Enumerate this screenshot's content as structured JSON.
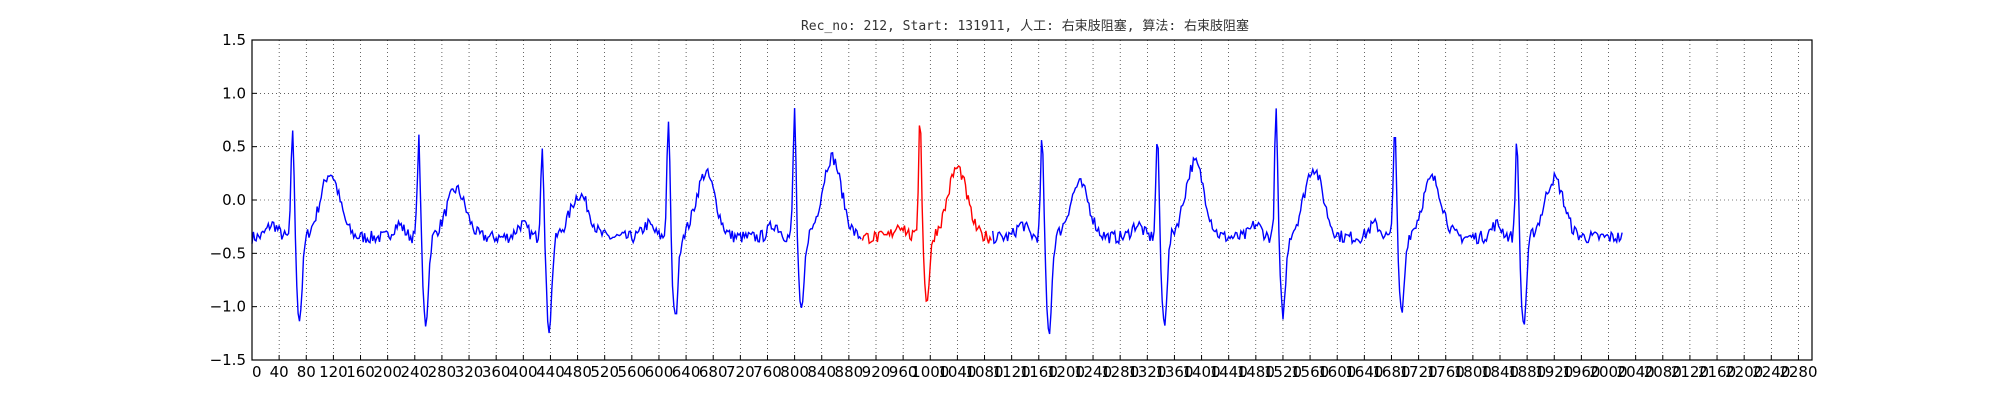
{
  "chart_data": {
    "type": "line",
    "title": "Rec_no: 212, Start: 131911, 人工: 右束肢阻塞, 算法: 右束肢阻塞",
    "xlabel": "",
    "ylabel": "",
    "xlim": [
      0,
      2300
    ],
    "ylim": [
      -1.5,
      1.5
    ],
    "grid": true,
    "x_ticks": [
      0,
      40,
      80,
      120,
      160,
      200,
      240,
      280,
      320,
      360,
      400,
      440,
      480,
      520,
      560,
      600,
      640,
      680,
      720,
      760,
      800,
      840,
      880,
      920,
      960,
      1000,
      1040,
      1080,
      1120,
      1160,
      1200,
      1240,
      1280,
      1320,
      1360,
      1400,
      1440,
      1480,
      1520,
      1560,
      1600,
      1640,
      1680,
      1720,
      1760,
      1800,
      1840,
      1880,
      1920,
      1960,
      2000,
      2040,
      2080,
      2120,
      2160,
      2200,
      2240,
      2280
    ],
    "x_tick_labels": [
      "0",
      "40",
      "80",
      "120",
      "160",
      "200",
      "240",
      "280",
      "320",
      "360",
      "400",
      "440",
      "480",
      "520",
      "560",
      "600",
      "640",
      "680",
      "720",
      "760",
      "800",
      "840",
      "880",
      "920",
      "960",
      "1000",
      "1040",
      "1080",
      "1120",
      "1160",
      "1200",
      "1240",
      "1280",
      "1320",
      "1360",
      "1400",
      "1440",
      "1480",
      "1520",
      "1560",
      "1600",
      "1640",
      "1680",
      "1720",
      "1760",
      "1800",
      "1840",
      "1880",
      "1920",
      "1960",
      "2000",
      "2040",
      "2080",
      "2120",
      "2160",
      "2200",
      "2240",
      "2280"
    ],
    "y_ticks": [
      -1.5,
      -1.0,
      -0.5,
      0.0,
      0.5,
      1.0,
      1.5
    ],
    "y_tick_labels": [
      "−1.5",
      "−1.0",
      "−0.5",
      "0.0",
      "0.5",
      "1.0",
      "1.5"
    ],
    "series": [
      {
        "color": "#0000ff",
        "beats": [
          {
            "r": 60,
            "amp": 1.05,
            "qdepth": -0.85,
            "tamp": 0.25
          },
          {
            "r": 246,
            "amp": 0.95,
            "qdepth": -0.9,
            "tamp": 0.1
          },
          {
            "r": 428,
            "amp": 0.92,
            "qdepth": -0.95,
            "tamp": 0.05
          },
          {
            "r": 614,
            "amp": 1.15,
            "qdepth": -0.85,
            "tamp": 0.25
          },
          {
            "r": 800,
            "amp": 1.22,
            "qdepth": -0.8,
            "tamp": 0.4
          },
          {
            "r": 1165,
            "amp": 0.97,
            "qdepth": -1.0,
            "tamp": 0.15
          },
          {
            "r": 1335,
            "amp": 1.0,
            "qdepth": -0.9,
            "tamp": 0.35
          },
          {
            "r": 1510,
            "amp": 1.22,
            "qdepth": -0.8,
            "tamp": 0.3
          },
          {
            "r": 1685,
            "amp": 1.12,
            "qdepth": -0.8,
            "tamp": 0.2
          },
          {
            "r": 1865,
            "amp": 0.98,
            "qdepth": -0.92,
            "tamp": 0.2
          }
        ],
        "x_range": [
          0,
          2020
        ]
      },
      {
        "color": "#ff0000",
        "beats": [
          {
            "r": 985,
            "amp": 1.18,
            "qdepth": -0.65,
            "tamp": 0.3
          }
        ],
        "x_range": [
          900,
          1090
        ]
      }
    ]
  }
}
